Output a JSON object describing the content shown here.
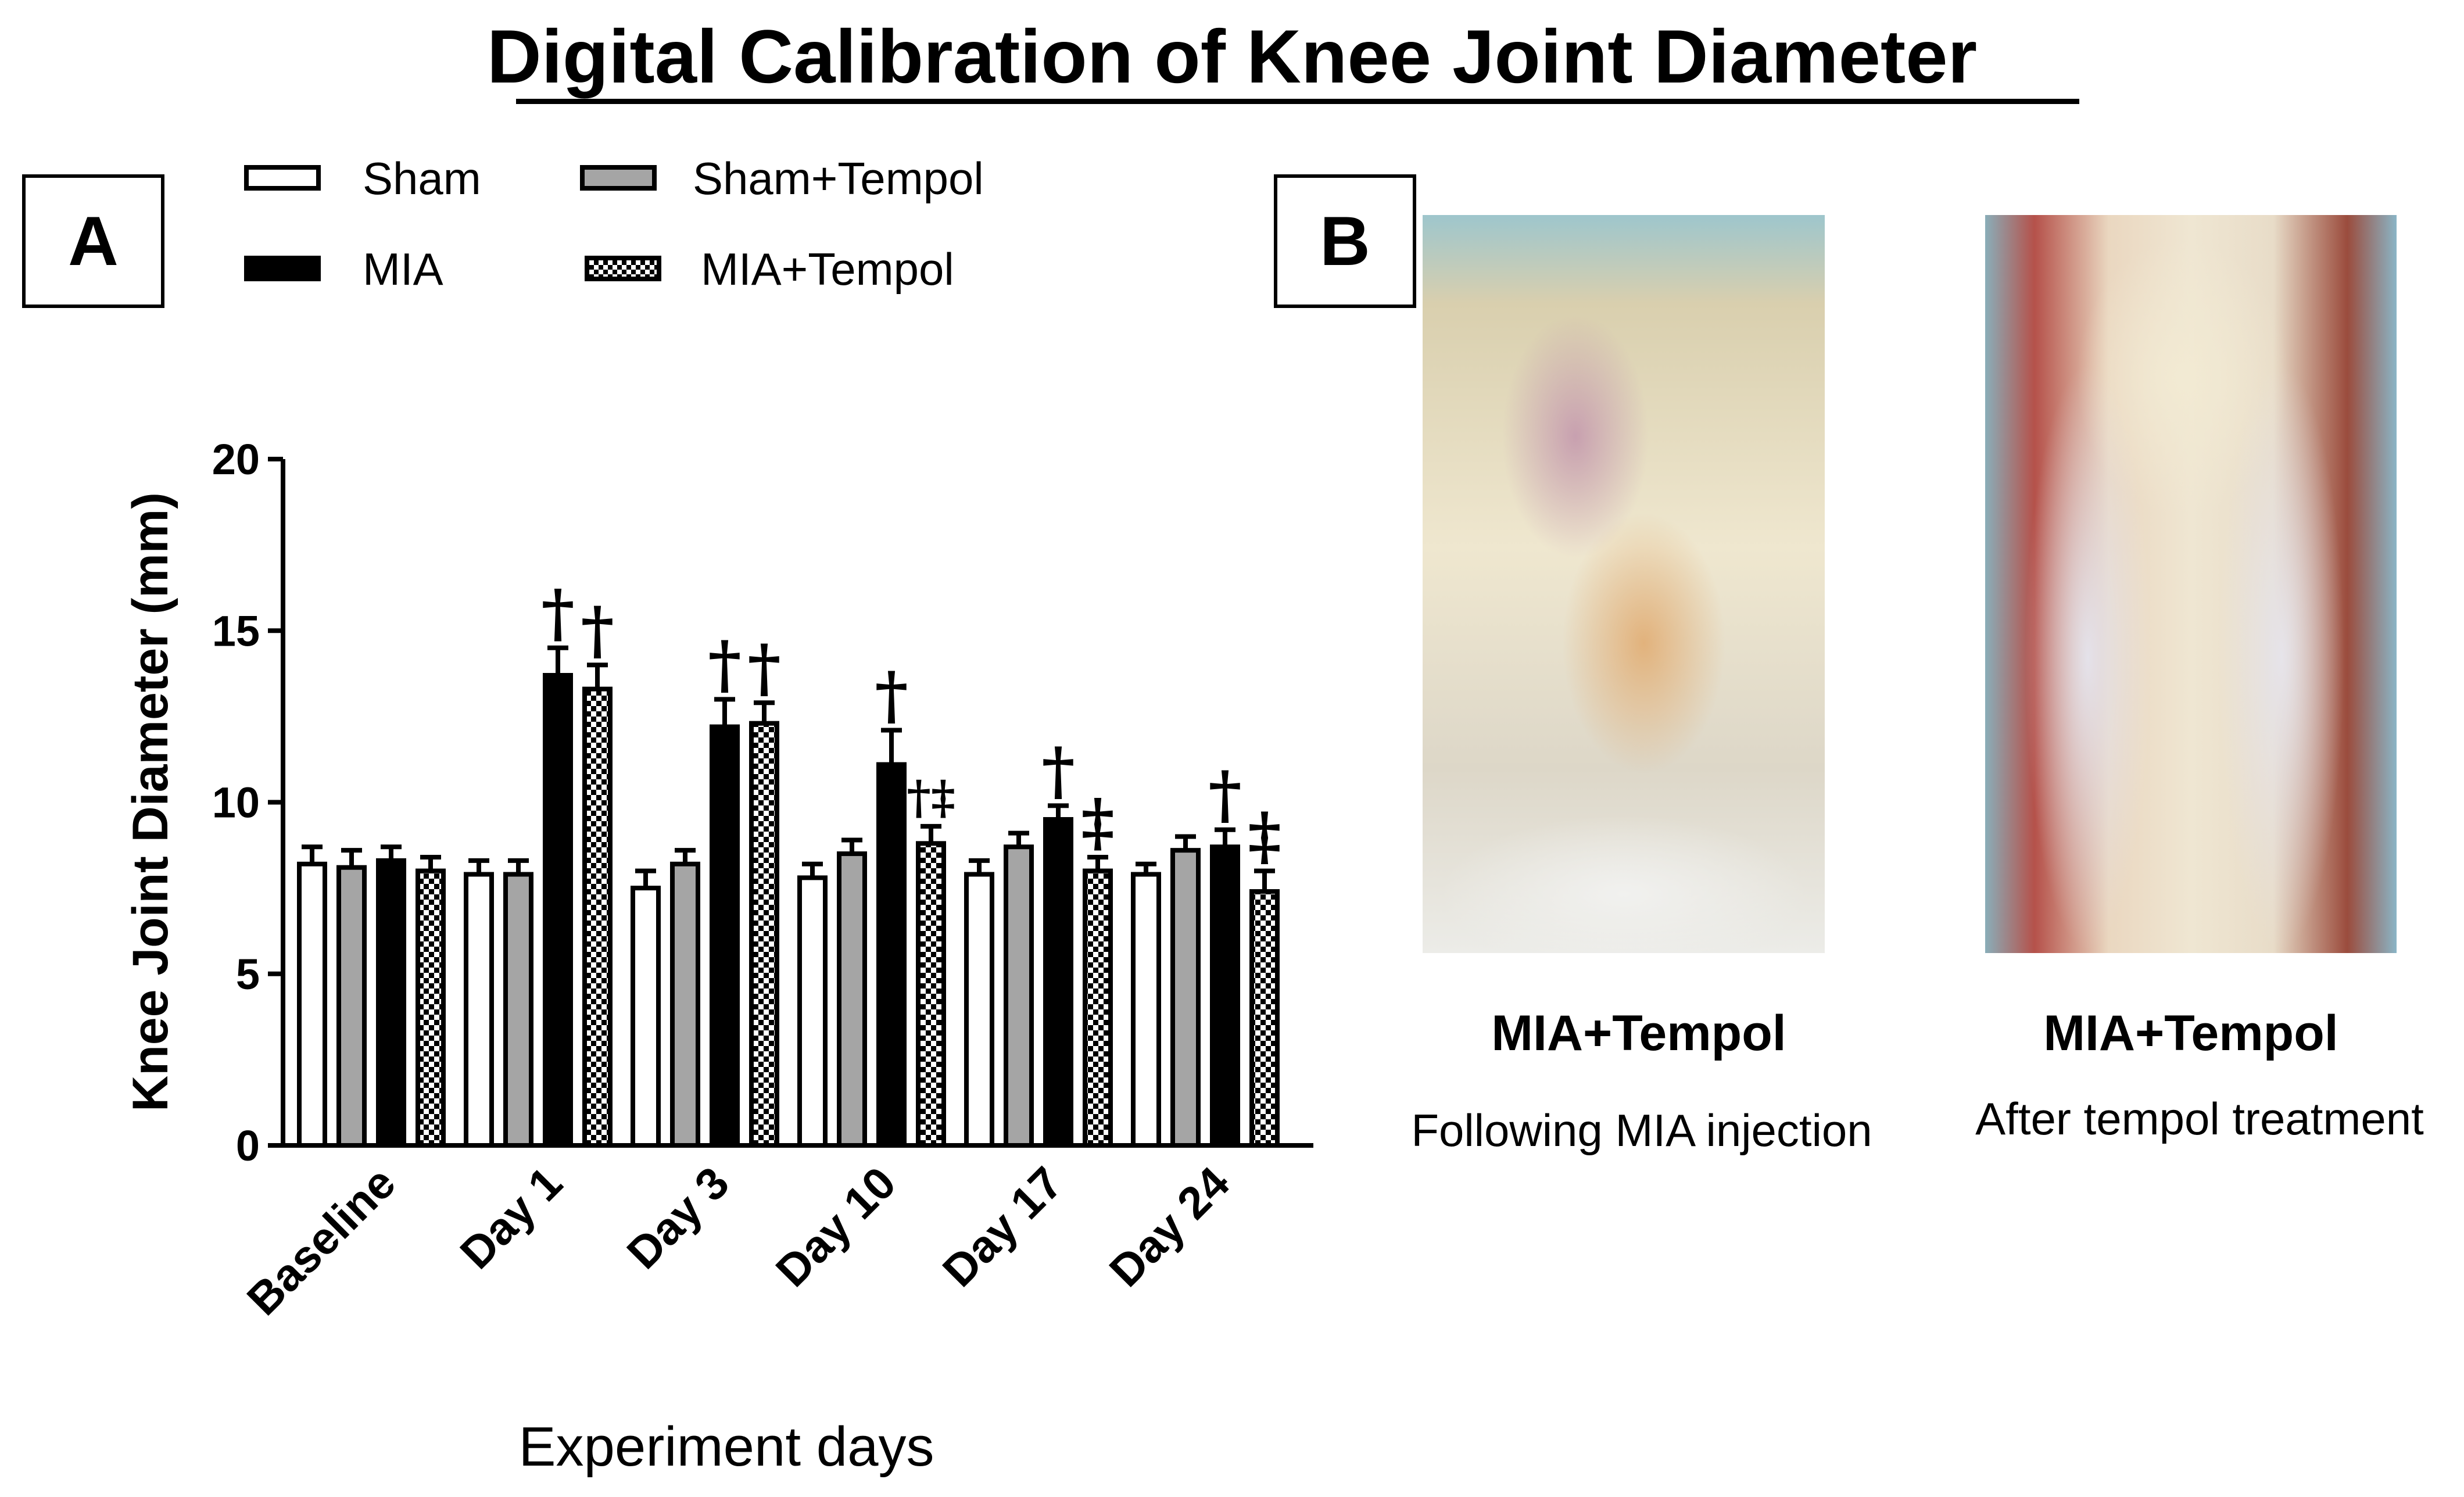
{
  "title": "Digital Calibration of Knee Joint Diameter",
  "panels": {
    "a": "A",
    "b": "B"
  },
  "legend": {
    "sham": "Sham",
    "sham_tempol": "Sham+Tempol",
    "mia": "MIA",
    "mia_tempol": "MIA+Tempol"
  },
  "photos": [
    {
      "label": "MIA+Tempol",
      "caption": "Following MIA injection",
      "icon": "rat-knee-photo-icon"
    },
    {
      "label": "MIA+Tempol",
      "caption": "After tempol treatment",
      "icon": "rat-knee-photo-icon"
    }
  ],
  "colors": {
    "sham": "#ffffff",
    "sham_tempol": "#a5a5a5",
    "mia": "#000000",
    "mia_tempol": "checkered"
  },
  "chart_data": {
    "type": "bar",
    "title": "",
    "xlabel": "Experiment days",
    "ylabel": "Knee Joint Diameter (mm)",
    "ylim": [
      0,
      20
    ],
    "yticks": [
      "0",
      "5",
      "10",
      "15",
      "20"
    ],
    "categories": [
      "Baseline",
      "Day 1",
      "Day 3",
      "Day 10",
      "Day 17",
      "Day 24"
    ],
    "series": [
      {
        "name": "Sham",
        "values": [
          8.2,
          7.9,
          7.5,
          7.8,
          7.9,
          7.9
        ],
        "errors": [
          0.5,
          0.4,
          0.5,
          0.4,
          0.4,
          0.3
        ]
      },
      {
        "name": "Sham+Tempol",
        "values": [
          8.1,
          7.9,
          8.2,
          8.5,
          8.7,
          8.6
        ],
        "errors": [
          0.5,
          0.4,
          0.4,
          0.4,
          0.4,
          0.4
        ]
      },
      {
        "name": "MIA",
        "values": [
          8.3,
          13.7,
          12.2,
          11.1,
          9.5,
          8.7
        ],
        "errors": [
          0.4,
          0.8,
          0.8,
          1.0,
          0.4,
          0.5
        ]
      },
      {
        "name": "MIA+Tempol",
        "values": [
          8.0,
          13.3,
          12.3,
          8.8,
          8.0,
          7.4
        ],
        "errors": [
          0.4,
          0.7,
          0.6,
          0.5,
          0.4,
          0.6
        ]
      }
    ],
    "annotations": [
      {
        "category": "Day 1",
        "series": "MIA",
        "text": "†"
      },
      {
        "category": "Day 1",
        "series": "MIA+Tempol",
        "text": "†"
      },
      {
        "category": "Day 3",
        "series": "MIA",
        "text": "†"
      },
      {
        "category": "Day 3",
        "series": "MIA+Tempol",
        "text": "†"
      },
      {
        "category": "Day 10",
        "series": "MIA",
        "text": "†"
      },
      {
        "category": "Day 10",
        "series": "MIA+Tempol",
        "text": "†‡"
      },
      {
        "category": "Day 17",
        "series": "MIA",
        "text": "†"
      },
      {
        "category": "Day 17",
        "series": "MIA+Tempol",
        "text": "‡"
      },
      {
        "category": "Day 24",
        "series": "MIA",
        "text": "†"
      },
      {
        "category": "Day 24",
        "series": "MIA+Tempol",
        "text": "‡"
      }
    ]
  }
}
